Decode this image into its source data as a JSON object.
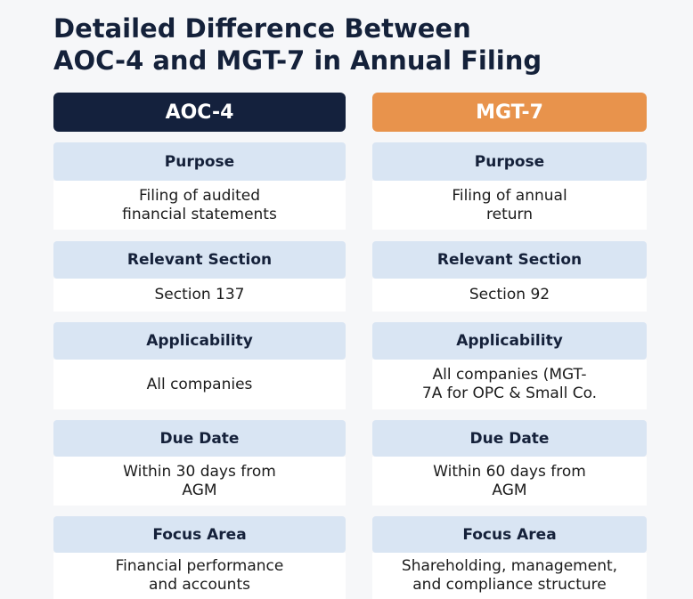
{
  "title": {
    "lines": [
      "Detailed Difference Between",
      "AOC-4 and MGT-7 in Annual Filing"
    ]
  },
  "columns": [
    {
      "header": "AOC-4",
      "sections": [
        {
          "heading": "Purpose",
          "lines": [
            "Filing of audited",
            "financial statements"
          ]
        },
        {
          "heading": "Relevant Section",
          "lines": [
            "Section 137"
          ]
        },
        {
          "heading": "Applicability",
          "lines": [
            "All companies"
          ]
        },
        {
          "heading": "Due Date",
          "lines": [
            "Within 30 days from",
            "AGM"
          ]
        },
        {
          "heading": "Focus Area",
          "lines": [
            "Financial performance",
            "and accounts"
          ]
        }
      ]
    },
    {
      "header": "MGT-7",
      "sections": [
        {
          "heading": "Purpose",
          "lines": [
            "Filing of annual",
            "return"
          ]
        },
        {
          "heading": "Relevant Section",
          "lines": [
            "Section 92"
          ]
        },
        {
          "heading": "Applicability",
          "lines": [
            "All companies (MGT-",
            "7A for OPC & Small Co."
          ]
        },
        {
          "heading": "Due Date",
          "lines": [
            "Within 60 days from",
            "AGM"
          ]
        },
        {
          "heading": "Focus Area",
          "lines": [
            "Shareholding, management,",
            "and compliance structure"
          ]
        }
      ]
    }
  ]
}
